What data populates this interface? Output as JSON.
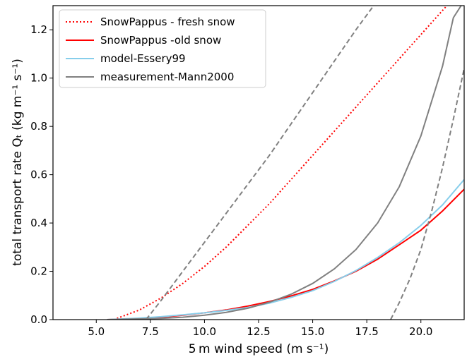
{
  "chart_data": {
    "type": "line",
    "xlabel": "5 m wind speed (m s⁻¹)",
    "ylabel": "total transport rate Qₜ (kg m⁻¹ s⁻¹)",
    "xlim": [
      3.0,
      22.0
    ],
    "ylim": [
      0.0,
      1.3
    ],
    "x_ticks": [
      5.0,
      7.5,
      10.0,
      12.5,
      15.0,
      17.5,
      20.0
    ],
    "x_tick_labels": [
      "5.0",
      "7.5",
      "10.0",
      "12.5",
      "15.0",
      "17.5",
      "20.0"
    ],
    "y_ticks": [
      0.0,
      0.2,
      0.4,
      0.6,
      0.8,
      1.0,
      1.2
    ],
    "y_tick_labels": [
      "0.0",
      "0.2",
      "0.4",
      "0.6",
      "0.8",
      "1.0",
      "1.2"
    ],
    "grid": false,
    "legend": {
      "position": "top-left",
      "entries": [
        {
          "label": "SnowPappus - fresh snow",
          "color": "#ff0000",
          "style": "dotted"
        },
        {
          "label": "SnowPappus -old snow",
          "color": "#ff0000",
          "style": "solid"
        },
        {
          "label": "model-Essery99",
          "color": "#87ceeb",
          "style": "solid"
        },
        {
          "label": "measurement-Mann2000",
          "color": "#808080",
          "style": "solid"
        }
      ]
    },
    "series": [
      {
        "name": "SnowPappus - fresh snow",
        "color": "#ff0000",
        "style": "dotted",
        "x": [
          5.8,
          7.0,
          8.0,
          9.0,
          10.0,
          11.0,
          12.0,
          13.0,
          14.0,
          15.0,
          16.0,
          17.0,
          18.0,
          19.0,
          20.0,
          21.0,
          21.3
        ],
        "y": [
          0.0,
          0.04,
          0.09,
          0.15,
          0.22,
          0.3,
          0.39,
          0.48,
          0.58,
          0.68,
          0.78,
          0.88,
          0.98,
          1.08,
          1.18,
          1.28,
          1.31
        ]
      },
      {
        "name": "SnowPappus -old snow",
        "color": "#ff0000",
        "style": "solid",
        "x": [
          5.5,
          7.0,
          8.0,
          9.0,
          10.0,
          11.0,
          12.0,
          13.0,
          14.0,
          15.0,
          16.0,
          17.0,
          18.0,
          19.0,
          20.0,
          21.0,
          22.0
        ],
        "y": [
          0.0,
          0.004,
          0.01,
          0.018,
          0.028,
          0.04,
          0.056,
          0.075,
          0.098,
          0.125,
          0.16,
          0.2,
          0.25,
          0.31,
          0.37,
          0.45,
          0.54
        ]
      },
      {
        "name": "model-Essery99",
        "color": "#87ceeb",
        "style": "solid",
        "x": [
          5.5,
          7.0,
          8.0,
          9.0,
          10.0,
          11.0,
          12.0,
          13.0,
          14.0,
          15.0,
          16.0,
          17.0,
          18.0,
          19.0,
          20.0,
          21.0,
          22.0
        ],
        "y": [
          0.0,
          0.006,
          0.012,
          0.02,
          0.028,
          0.038,
          0.05,
          0.068,
          0.092,
          0.12,
          0.158,
          0.203,
          0.257,
          0.318,
          0.39,
          0.475,
          0.58
        ]
      },
      {
        "name": "measurement-Mann2000",
        "color": "#808080",
        "style": "solid",
        "x": [
          5.5,
          8.0,
          9.0,
          10.0,
          11.0,
          12.0,
          13.0,
          14.0,
          15.0,
          16.0,
          17.0,
          18.0,
          19.0,
          20.0,
          21.0,
          21.5,
          22.0
        ],
        "y": [
          0.0,
          0.005,
          0.01,
          0.018,
          0.03,
          0.047,
          0.072,
          0.105,
          0.15,
          0.21,
          0.29,
          0.4,
          0.55,
          0.76,
          1.05,
          1.25,
          1.32
        ]
      },
      {
        "color": "#808080",
        "style": "dashed",
        "x": [
          7.3,
          8.0,
          9.0,
          10.0,
          11.0,
          12.0,
          13.0,
          14.0,
          15.0,
          16.0,
          17.0,
          17.9
        ],
        "y": [
          0.0,
          0.08,
          0.2,
          0.32,
          0.44,
          0.56,
          0.68,
          0.81,
          0.94,
          1.07,
          1.2,
          1.31
        ]
      },
      {
        "color": "#808080",
        "style": "dashed",
        "x": [
          18.6,
          19.0,
          19.5,
          20.0,
          20.5,
          21.0,
          21.5,
          22.0
        ],
        "y": [
          0.0,
          0.07,
          0.17,
          0.29,
          0.45,
          0.63,
          0.83,
          1.04
        ]
      }
    ]
  }
}
